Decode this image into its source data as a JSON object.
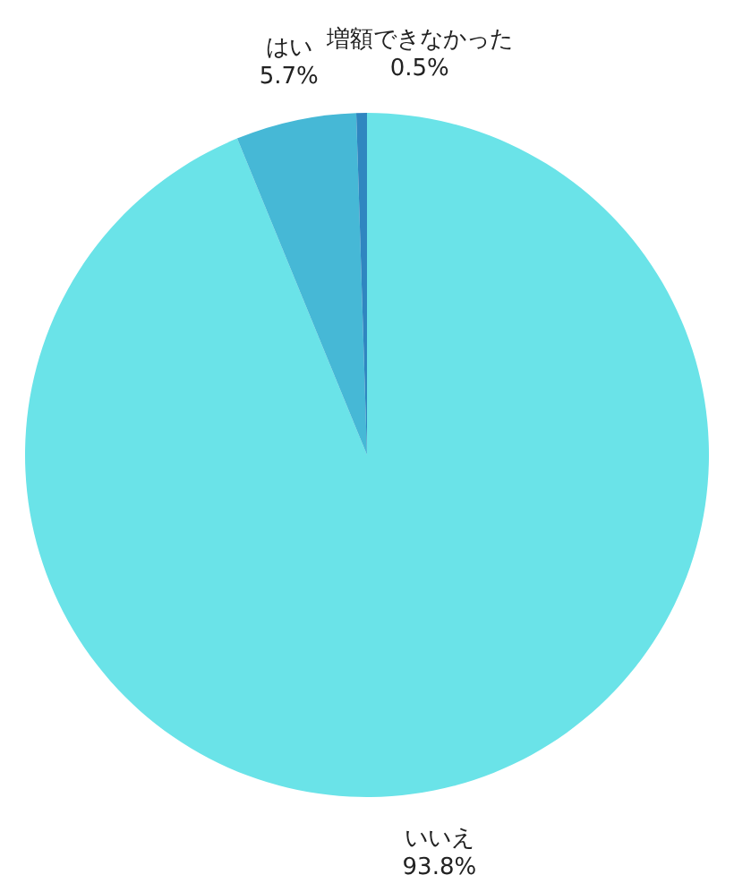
{
  "chart_data": {
    "type": "pie",
    "categories": [
      "いいえ",
      "はい",
      "増額できなかった"
    ],
    "values": [
      93.8,
      5.7,
      0.5
    ],
    "colors": [
      "#6ae3e8",
      "#46b8d6",
      "#2f86c0"
    ],
    "value_labels": [
      "93.8%",
      "5.7%",
      "0.5%"
    ]
  }
}
